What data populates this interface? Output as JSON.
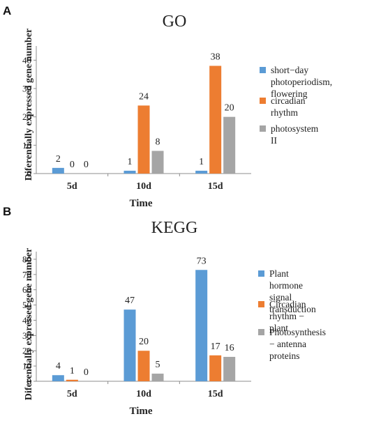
{
  "chart_data": [
    {
      "panel": "A",
      "type": "bar",
      "title": "GO",
      "xlabel": "Time",
      "ylabel": "Diferentially expressed  gene number",
      "categories": [
        "5d",
        "10d",
        "15d"
      ],
      "yticks": [
        0,
        10,
        20,
        30,
        40
      ],
      "ylim": [
        0,
        45
      ],
      "grid": false,
      "legend_position": "right",
      "series": [
        {
          "name": "short−day photoperiodism, flowering",
          "color": "#5b9bd5",
          "values": [
            2,
            1,
            1
          ]
        },
        {
          "name": "circadian rhythm",
          "color": "#ed7d31",
          "values": [
            0,
            24,
            38
          ]
        },
        {
          "name": "photosystem II",
          "color": "#a5a5a5",
          "values": [
            0,
            8,
            20
          ]
        }
      ],
      "legend_lines": [
        [
          "short−day photoperiodism,",
          "flowering"
        ],
        [
          "circadian rhythm"
        ],
        [
          "photosystem II"
        ]
      ]
    },
    {
      "panel": "B",
      "type": "bar",
      "title": "KEGG",
      "xlabel": "Time",
      "ylabel": "Diferentially expressed  gene number",
      "categories": [
        "5d",
        "10d",
        "15d"
      ],
      "yticks": [
        0,
        10,
        20,
        30,
        40,
        50,
        60,
        70,
        80
      ],
      "ylim": [
        0,
        85
      ],
      "grid": false,
      "legend_position": "right",
      "series": [
        {
          "name": "Plant hormone signal transduction",
          "color": "#5b9bd5",
          "values": [
            4,
            47,
            73
          ]
        },
        {
          "name": "Circadian rhythm − plant",
          "color": "#ed7d31",
          "values": [
            1,
            20,
            17
          ]
        },
        {
          "name": "Photosynthesis − antenna proteins",
          "color": "#a5a5a5",
          "values": [
            0,
            5,
            16
          ]
        }
      ],
      "legend_lines": [
        [
          "Plant hormone signal",
          "transduction"
        ],
        [
          "Circadian rhythm − plant"
        ],
        [
          "Photosynthesis − antenna",
          "proteins"
        ]
      ]
    }
  ]
}
